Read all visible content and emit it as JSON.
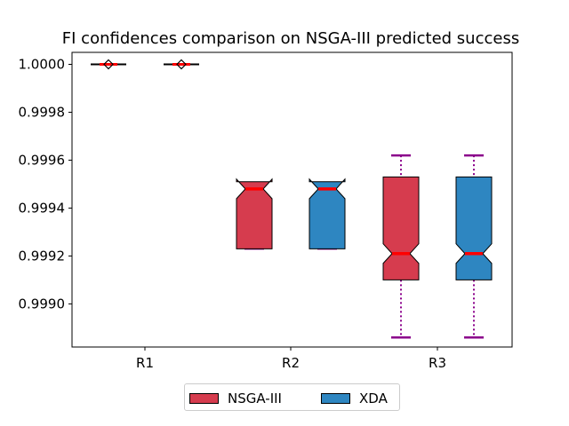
{
  "chart_data": {
    "type": "boxplot",
    "title": "FI confidences comparison on NSGA-III predicted success",
    "xlabel": "",
    "ylabel": "",
    "categories": [
      "R1",
      "R2",
      "R3"
    ],
    "ylim": [
      0.99882,
      1.00005
    ],
    "yticks": [
      0.999,
      0.9992,
      0.9994,
      0.9996,
      0.9998,
      1.0
    ],
    "ytick_labels": [
      "0.9990",
      "0.9992",
      "0.9994",
      "0.9996",
      "0.9998",
      "1.0000"
    ],
    "notched": true,
    "grid": false,
    "legend_position": "bottom-center",
    "series": [
      {
        "name": "NSGA-III",
        "color": "#d63c4e",
        "boxes": [
          {
            "whisker_low": 1.0,
            "q1": 1.0,
            "median": 1.0,
            "q3": 1.0,
            "whisker_high": 1.0
          },
          {
            "whisker_low": 0.99923,
            "q1": 0.99923,
            "median": 0.99948,
            "q3": 0.99951,
            "whisker_high": 0.99951
          },
          {
            "whisker_low": 0.99886,
            "q1": 0.9991,
            "median": 0.99921,
            "q3": 0.99953,
            "whisker_high": 0.99962
          }
        ]
      },
      {
        "name": "XDA",
        "color": "#2e86c1",
        "boxes": [
          {
            "whisker_low": 1.0,
            "q1": 1.0,
            "median": 1.0,
            "q3": 1.0,
            "whisker_high": 1.0
          },
          {
            "whisker_low": 0.99923,
            "q1": 0.99923,
            "median": 0.99948,
            "q3": 0.99951,
            "whisker_high": 0.99951
          },
          {
            "whisker_low": 0.99886,
            "q1": 0.9991,
            "median": 0.99921,
            "q3": 0.99953,
            "whisker_high": 0.99962
          }
        ]
      }
    ],
    "median_color": "#ff0000",
    "whisker_color": "#8b008b"
  }
}
